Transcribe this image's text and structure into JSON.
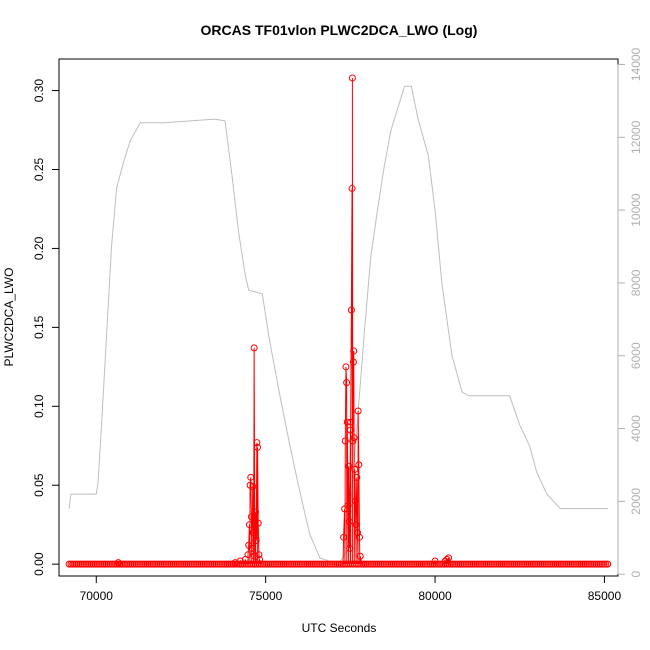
{
  "chart_data": {
    "type": "line",
    "title": "ORCAS TF01vlon PLWC2DCA_LWO (Log)",
    "xlabel": "UTC Seconds",
    "ylabel": "PLWC2DCA_LWO",
    "xlim": [
      68900,
      85400
    ],
    "ylim": [
      -0.0075,
      0.32
    ],
    "y2lim": [
      -50,
      14150
    ],
    "x_ticks": [
      70000,
      75000,
      80000,
      85000
    ],
    "y_ticks": [
      0.0,
      0.05,
      0.1,
      0.15,
      0.2,
      0.25,
      0.3
    ],
    "y2_ticks": [
      0,
      2000,
      4000,
      6000,
      8000,
      10000,
      12000,
      14000
    ],
    "x_tick_labels": [
      "70000",
      "75000",
      "80000",
      "85000"
    ],
    "y_tick_labels": [
      "0.00",
      "0.05",
      "0.10",
      "0.15",
      "0.20",
      "0.25",
      "0.30"
    ],
    "y2_tick_labels": [
      "0",
      "2000",
      "4000",
      "6000",
      "8000",
      "10000",
      "12000",
      "14000"
    ],
    "colors": {
      "series": "#ff0000",
      "altitude": "#bebebe",
      "axis": "#000000",
      "right_axis": "#b0b0b0"
    },
    "baseline": {
      "x_start": 69200,
      "x_end": 85100,
      "y": 0.0,
      "step": 55
    },
    "series": [
      {
        "color": "#ff0000",
        "points": [
          [
            70650,
            0.001
          ],
          [
            74100,
            0.001
          ],
          [
            74250,
            0.002
          ],
          [
            74400,
            0.003
          ],
          [
            74480,
            0.006
          ],
          [
            74500,
            0.012
          ],
          [
            74520,
            0.025
          ],
          [
            74540,
            0.05
          ],
          [
            74560,
            0.055
          ],
          [
            74580,
            0.03
          ],
          [
            74600,
            0.01
          ],
          [
            74620,
            0.049
          ],
          [
            74640,
            0.02
          ],
          [
            74660,
            0.137
          ],
          [
            74680,
            0.005
          ],
          [
            74700,
            0.033
          ],
          [
            74720,
            0.015
          ],
          [
            74740,
            0.077
          ],
          [
            74760,
            0.074
          ],
          [
            74780,
            0.026
          ],
          [
            74800,
            0.006
          ],
          [
            74820,
            0.003
          ],
          [
            77300,
            0.017
          ],
          [
            77330,
            0.035
          ],
          [
            77350,
            0.078
          ],
          [
            77370,
            0.125
          ],
          [
            77390,
            0.115
          ],
          [
            77410,
            0.09
          ],
          [
            77430,
            0.037
          ],
          [
            77450,
            0.062
          ],
          [
            77470,
            0.027
          ],
          [
            77480,
            0.01
          ],
          [
            77500,
            0.085
          ],
          [
            77510,
            0.09
          ],
          [
            77530,
            0.161
          ],
          [
            77550,
            0.238
          ],
          [
            77560,
            0.308
          ],
          [
            77570,
            0.078
          ],
          [
            77590,
            0.128
          ],
          [
            77600,
            0.135
          ],
          [
            77610,
            0.08
          ],
          [
            77630,
            0.06
          ],
          [
            77650,
            0.04
          ],
          [
            77670,
            0.025
          ],
          [
            77690,
            0.055
          ],
          [
            77710,
            0.02
          ],
          [
            77730,
            0.097
          ],
          [
            77750,
            0.063
          ],
          [
            77770,
            0.017
          ],
          [
            77790,
            0.005
          ],
          [
            80000,
            0.002
          ],
          [
            80300,
            0.002
          ],
          [
            80350,
            0.003
          ],
          [
            80400,
            0.004
          ]
        ]
      },
      {
        "color": "#bebebe",
        "axis": "right",
        "points": [
          [
            69200,
            1800
          ],
          [
            69250,
            2200
          ],
          [
            70000,
            2200
          ],
          [
            70050,
            2500
          ],
          [
            70150,
            4000
          ],
          [
            70300,
            6500
          ],
          [
            70450,
            9000
          ],
          [
            70600,
            10600
          ],
          [
            70800,
            11300
          ],
          [
            71000,
            11900
          ],
          [
            71300,
            12400
          ],
          [
            72000,
            12400
          ],
          [
            73500,
            12500
          ],
          [
            73800,
            12450
          ],
          [
            74000,
            11000
          ],
          [
            74200,
            9400
          ],
          [
            74400,
            8200
          ],
          [
            74500,
            7800
          ],
          [
            74900,
            7700
          ],
          [
            75100,
            6500
          ],
          [
            75400,
            5000
          ],
          [
            75700,
            3600
          ],
          [
            76000,
            2300
          ],
          [
            76300,
            1100
          ],
          [
            76600,
            450
          ],
          [
            76900,
            350
          ],
          [
            77200,
            350
          ],
          [
            77400,
            650
          ],
          [
            77650,
            3500
          ],
          [
            77900,
            6500
          ],
          [
            78100,
            8700
          ],
          [
            78300,
            10000
          ],
          [
            78500,
            11200
          ],
          [
            78700,
            12200
          ],
          [
            78900,
            12800
          ],
          [
            79100,
            13400
          ],
          [
            79300,
            13400
          ],
          [
            79500,
            12500
          ],
          [
            79800,
            11500
          ],
          [
            80000,
            10000
          ],
          [
            80200,
            8000
          ],
          [
            80500,
            6000
          ],
          [
            80800,
            5000
          ],
          [
            81000,
            4900
          ],
          [
            82200,
            4900
          ],
          [
            82500,
            4100
          ],
          [
            82800,
            3500
          ],
          [
            83000,
            2800
          ],
          [
            83300,
            2200
          ],
          [
            83700,
            1800
          ],
          [
            85100,
            1800
          ]
        ]
      }
    ],
    "grid": false,
    "legend": "none"
  }
}
